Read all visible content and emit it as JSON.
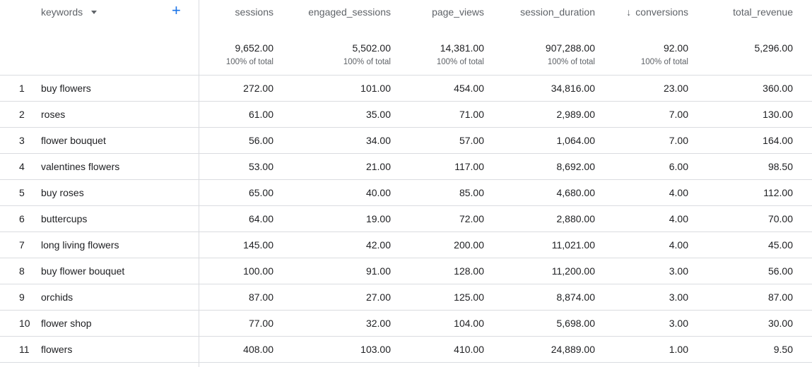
{
  "header": {
    "dimension_label": "keywords",
    "columns": [
      {
        "key": "sessions",
        "label": "sessions",
        "sorted": false
      },
      {
        "key": "engaged_sessions",
        "label": "engaged_sessions",
        "sorted": false
      },
      {
        "key": "page_views",
        "label": "page_views",
        "sorted": false
      },
      {
        "key": "session_duration",
        "label": "session_duration",
        "sorted": false
      },
      {
        "key": "conversions",
        "label": "conversions",
        "sorted": true,
        "sort_icon": "↓"
      },
      {
        "key": "total_revenue",
        "label": "total_revenue",
        "sorted": false
      }
    ],
    "add_icon": "+"
  },
  "totals": [
    {
      "value": "9,652.00",
      "pct": "100% of total"
    },
    {
      "value": "5,502.00",
      "pct": "100% of total"
    },
    {
      "value": "14,381.00",
      "pct": "100% of total"
    },
    {
      "value": "907,288.00",
      "pct": "100% of total"
    },
    {
      "value": "92.00",
      "pct": "100% of total"
    },
    {
      "value": "5,296.00",
      "pct": ""
    }
  ],
  "rows": [
    {
      "n": "1",
      "keyword": "buy flowers",
      "values": [
        "272.00",
        "101.00",
        "454.00",
        "34,816.00",
        "23.00",
        "360.00"
      ]
    },
    {
      "n": "2",
      "keyword": "roses",
      "values": [
        "61.00",
        "35.00",
        "71.00",
        "2,989.00",
        "7.00",
        "130.00"
      ]
    },
    {
      "n": "3",
      "keyword": "flower bouquet",
      "values": [
        "56.00",
        "34.00",
        "57.00",
        "1,064.00",
        "7.00",
        "164.00"
      ]
    },
    {
      "n": "4",
      "keyword": "valentines flowers",
      "values": [
        "53.00",
        "21.00",
        "117.00",
        "8,692.00",
        "6.00",
        "98.50"
      ]
    },
    {
      "n": "5",
      "keyword": "buy roses",
      "values": [
        "65.00",
        "40.00",
        "85.00",
        "4,680.00",
        "4.00",
        "112.00"
      ]
    },
    {
      "n": "6",
      "keyword": "buttercups",
      "values": [
        "64.00",
        "19.00",
        "72.00",
        "2,880.00",
        "4.00",
        "70.00"
      ]
    },
    {
      "n": "7",
      "keyword": "long living flowers",
      "values": [
        "145.00",
        "42.00",
        "200.00",
        "11,021.00",
        "4.00",
        "45.00"
      ]
    },
    {
      "n": "8",
      "keyword": "buy flower bouquet",
      "values": [
        "100.00",
        "91.00",
        "128.00",
        "11,200.00",
        "3.00",
        "56.00"
      ]
    },
    {
      "n": "9",
      "keyword": "orchids",
      "values": [
        "87.00",
        "27.00",
        "125.00",
        "8,874.00",
        "3.00",
        "87.00"
      ]
    },
    {
      "n": "10",
      "keyword": "flower shop",
      "values": [
        "77.00",
        "32.00",
        "104.00",
        "5,698.00",
        "3.00",
        "30.00"
      ]
    },
    {
      "n": "11",
      "keyword": "flowers",
      "values": [
        "408.00",
        "103.00",
        "410.00",
        "24,889.00",
        "1.00",
        "9.50"
      ]
    }
  ]
}
